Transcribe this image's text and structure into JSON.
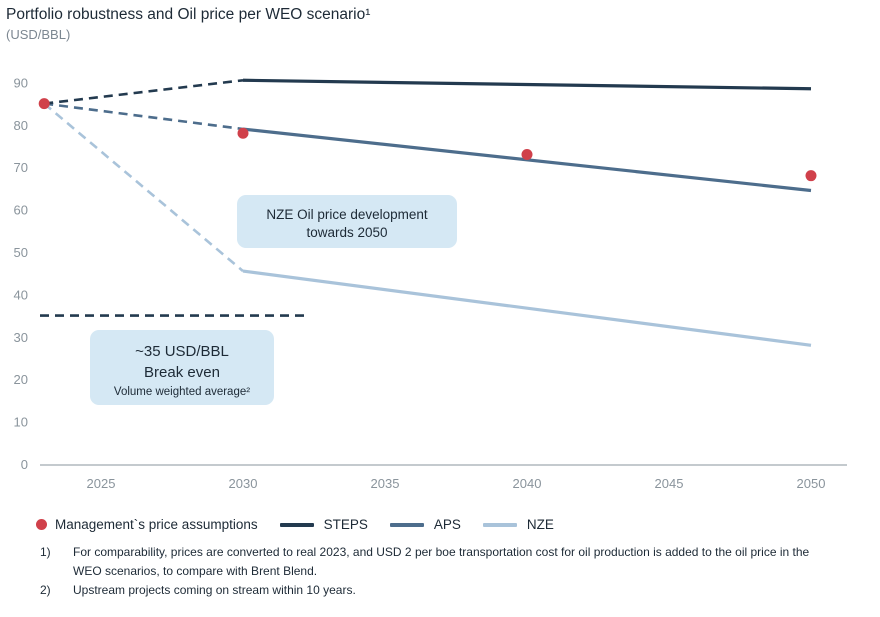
{
  "chart_data": {
    "type": "line",
    "title": "Portfolio robustness and Oil price per WEO scenario¹",
    "subtitle": "(USD/BBL)",
    "xlabel": "",
    "ylabel": "USD/BBL",
    "xlim": [
      2023,
      2051
    ],
    "ylim": [
      0,
      90
    ],
    "x_ticks": [
      2025,
      2030,
      2035,
      2040,
      2045,
      2050
    ],
    "y_ticks": [
      0,
      10,
      20,
      30,
      40,
      50,
      60,
      70,
      80,
      90
    ],
    "series": [
      {
        "name": "STEPS",
        "color": "#233a4f",
        "dashed_segment": {
          "x": [
            2023,
            2030
          ],
          "y": [
            85,
            90.5
          ]
        },
        "solid_segment": {
          "x": [
            2030,
            2050
          ],
          "y": [
            90.5,
            88.5
          ]
        }
      },
      {
        "name": "APS",
        "color": "#4d6d8c",
        "dashed_segment": {
          "x": [
            2023,
            2030
          ],
          "y": [
            85,
            79
          ]
        },
        "solid_segment": {
          "x": [
            2030,
            2050
          ],
          "y": [
            79,
            64.5
          ]
        }
      },
      {
        "name": "NZE",
        "color": "#a9c3da",
        "dashed_segment": {
          "x": [
            2023,
            2030
          ],
          "y": [
            85,
            45.5
          ]
        },
        "solid_segment": {
          "x": [
            2030,
            2050
          ],
          "y": [
            45.5,
            28
          ]
        }
      }
    ],
    "management_assumptions": {
      "name": "Management`s price assumptions",
      "color": "#d0404a",
      "points": [
        {
          "x": 2023,
          "y": 85
        },
        {
          "x": 2030,
          "y": 78
        },
        {
          "x": 2040,
          "y": 73
        },
        {
          "x": 2050,
          "y": 68
        }
      ]
    },
    "breakeven_line": {
      "y": 35,
      "x_range": [
        2023,
        2032
      ],
      "color": "#233a4f"
    },
    "annotations": [
      {
        "lines": [
          "NZE Oil price development",
          "towards 2050"
        ]
      },
      {
        "lines": [
          "~35 USD/BBL",
          "Break even",
          "Volume weighted average²"
        ]
      }
    ],
    "legend": [
      "Management`s price assumptions",
      "STEPS",
      "APS",
      "NZE"
    ]
  },
  "footnotes": [
    {
      "num": "1)",
      "text": "For comparability, prices are converted to real 2023, and USD 2 per boe transportation cost for oil production is added to the oil price in the WEO scenarios, to compare with Brent Blend."
    },
    {
      "num": "2)",
      "text": "Upstream projects coming on stream within 10 years."
    }
  ]
}
